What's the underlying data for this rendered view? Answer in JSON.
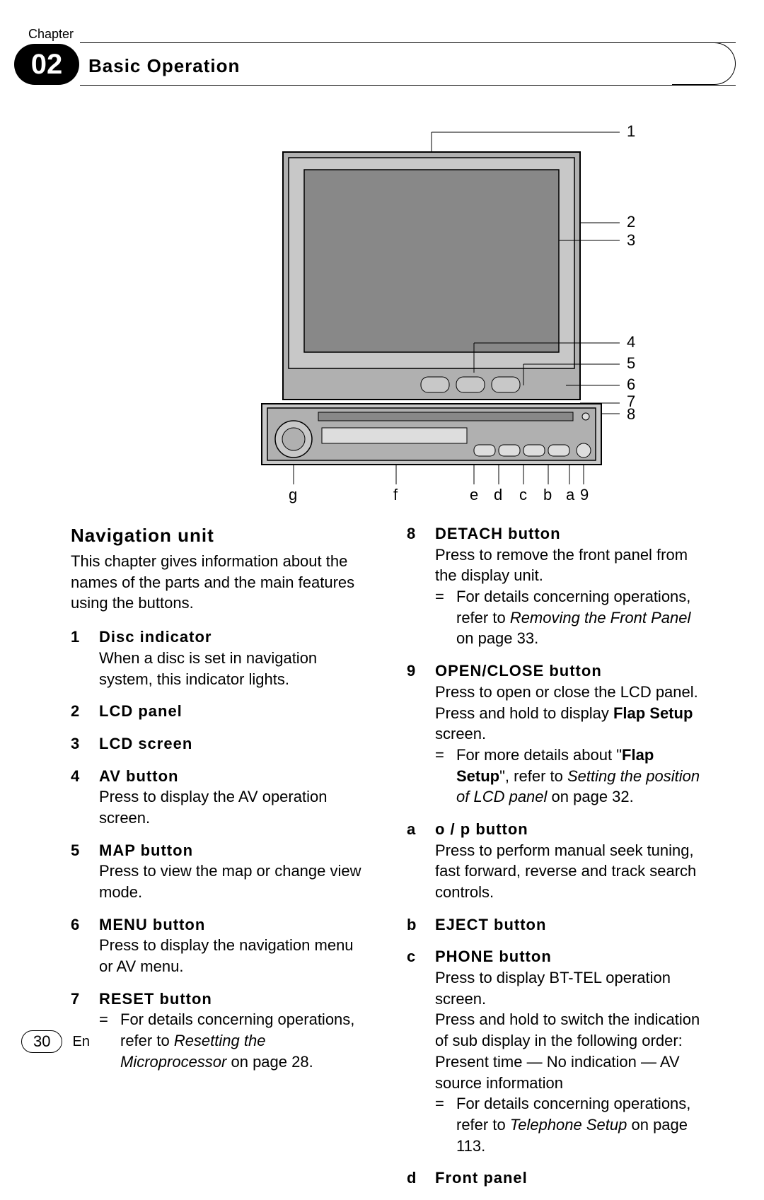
{
  "header": {
    "chapter_label": "Chapter",
    "chapter_number": "02",
    "chapter_title": "Basic Operation"
  },
  "diagram": {
    "right_callouts": [
      "1",
      "2",
      "3",
      "4",
      "5",
      "6",
      "7",
      "8"
    ],
    "bottom_callouts": [
      "g",
      "f",
      "e",
      "d",
      "c",
      "b",
      "a",
      "9"
    ],
    "colors": {
      "stroke": "#000000",
      "fill_light": "#c8c8c8",
      "fill_mid": "#b0b0b0",
      "fill_dark": "#888888"
    }
  },
  "section_title": "Navigation unit",
  "intro": "This chapter gives information about the names of the parts and the main features using the buttons.",
  "left_items": [
    {
      "num": "1",
      "title": "Disc indicator",
      "desc": "When a disc is set in navigation system, this indicator lights."
    },
    {
      "num": "2",
      "title": "LCD panel"
    },
    {
      "num": "3",
      "title": "LCD screen"
    },
    {
      "num": "4",
      "title": "AV button",
      "desc": "Press to display the AV operation screen."
    },
    {
      "num": "5",
      "title": "MAP button",
      "desc": "Press to view the map or change view mode."
    },
    {
      "num": "6",
      "title": "MENU button",
      "desc": "Press to display the navigation menu or AV menu."
    },
    {
      "num": "7",
      "title": "RESET button",
      "sub": {
        "pre": "For details concerning operations, refer to ",
        "link": "Resetting the Microprocessor",
        "post": " on page 28."
      }
    }
  ],
  "right_items": [
    {
      "num": "8",
      "title": "DETACH button",
      "desc": "Press to remove the front panel from the display unit.",
      "sub": {
        "pre": "For details concerning operations, refer to ",
        "link": "Removing the Front Panel",
        "post": " on page 33."
      }
    },
    {
      "num": "9",
      "title": "OPEN/CLOSE button",
      "desc_html": "Press to open or close the LCD panel.\nPress and hold to display <b>Flap Setup</b> screen.",
      "sub": {
        "pre": "For more details about \"<b>Flap Setup</b>\", refer to ",
        "link": "Setting the position of LCD panel",
        "post": " on page 32."
      }
    },
    {
      "num": "a",
      "title": "o / p   button",
      "desc": "Press to perform manual seek tuning, fast forward, reverse and track search controls."
    },
    {
      "num": "b",
      "title": "EJECT button"
    },
    {
      "num": "c",
      "title": "PHONE button",
      "desc": "Press to display BT-TEL operation screen.\nPress and hold to switch the indication of sub display in the following order:\nPresent time — No indication — AV source information",
      "sub": {
        "pre": "For details concerning operations, refer to ",
        "link": "Telephone Setup",
        "post": " on page 113."
      }
    },
    {
      "num": "d",
      "title": "Front panel"
    }
  ],
  "footer": {
    "page_number": "30",
    "language": "En"
  }
}
